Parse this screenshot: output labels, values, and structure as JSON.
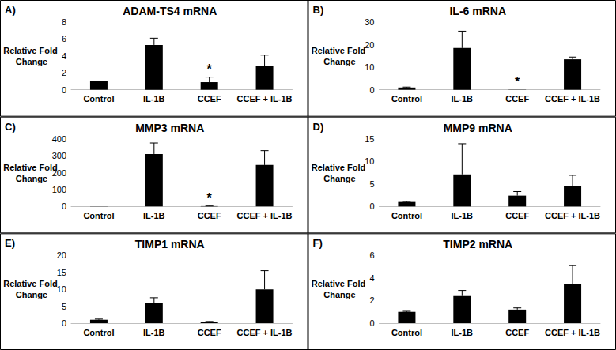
{
  "chart_data": [
    {
      "type": "bar",
      "label": "A)",
      "title": "ADAM-TS4 mRNA",
      "y_label": "Relative Fold Change",
      "categories": [
        "Control",
        "IL-1B",
        "CCEF",
        "CCEF + IL-1B"
      ],
      "values": [
        1,
        5.3,
        0.9,
        2.8
      ],
      "errors": [
        0,
        0.8,
        0.6,
        1.3
      ],
      "color": "#000000",
      "ylim": [
        0,
        8
      ],
      "yticks": [
        0,
        2,
        4,
        6,
        8
      ],
      "grid": false,
      "annotations": [
        {
          "text": "*",
          "category": "CCEF"
        }
      ]
    },
    {
      "type": "bar",
      "label": "B)",
      "title": "IL-6 mRNA",
      "y_label": "Relative Fold Change",
      "categories": [
        "Control",
        "IL-1B",
        "CCEF",
        "CCEF + IL-1B"
      ],
      "values": [
        1,
        18.5,
        0.1,
        13.5
      ],
      "errors": [
        0.2,
        7.5,
        0,
        1
      ],
      "color": "#000000",
      "ylim": [
        0,
        30
      ],
      "yticks": [
        0,
        10,
        20,
        30
      ],
      "grid": false,
      "annotations": [
        {
          "text": "*",
          "category": "CCEF"
        }
      ]
    },
    {
      "type": "bar",
      "label": "C)",
      "title": "MMP3 mRNA",
      "y_label": "Relative Fold Change",
      "categories": [
        "Control",
        "IL-1B",
        "CCEF",
        "CCEF + IL-1B"
      ],
      "values": [
        1,
        310,
        2,
        245
      ],
      "errors": [
        0,
        65,
        1,
        85
      ],
      "color": "#000000",
      "ylim": [
        0,
        400
      ],
      "yticks": [
        0,
        100,
        200,
        300,
        400
      ],
      "grid": false,
      "annotations": [
        {
          "text": "*",
          "category": "CCEF"
        }
      ]
    },
    {
      "type": "bar",
      "label": "D)",
      "title": "MMP9 mRNA",
      "y_label": "Relative Fold Change",
      "categories": [
        "Control",
        "IL-1B",
        "CCEF",
        "CCEF + IL-1B"
      ],
      "values": [
        1,
        7.1,
        2.4,
        4.5
      ],
      "errors": [
        0.1,
        6.8,
        0.9,
        2.4
      ],
      "color": "#000000",
      "ylim": [
        0,
        15
      ],
      "yticks": [
        0,
        5,
        10,
        15
      ],
      "grid": false,
      "annotations": []
    },
    {
      "type": "bar",
      "label": "E)",
      "title": "TIMP1 mRNA",
      "y_label": "Relative Fold Change",
      "categories": [
        "Control",
        "IL-1B",
        "CCEF",
        "CCEF + IL-1B"
      ],
      "values": [
        1,
        6,
        0.4,
        10
      ],
      "errors": [
        0.2,
        1.5,
        0.1,
        5.5
      ],
      "color": "#000000",
      "ylim": [
        0,
        20
      ],
      "yticks": [
        0,
        5,
        10,
        15,
        20
      ],
      "grid": false,
      "annotations": []
    },
    {
      "type": "bar",
      "label": "F)",
      "title": "TIMP2 mRNA",
      "y_label": "Relative Fold Change",
      "categories": [
        "Control",
        "IL-1B",
        "CCEF",
        "CCEF + IL-1B"
      ],
      "values": [
        1,
        2.4,
        1.2,
        3.5
      ],
      "errors": [
        0.05,
        0.5,
        0.15,
        1.6
      ],
      "color": "#000000",
      "ylim": [
        0,
        6
      ],
      "yticks": [
        0,
        2,
        4,
        6
      ],
      "grid": false,
      "annotations": []
    }
  ]
}
